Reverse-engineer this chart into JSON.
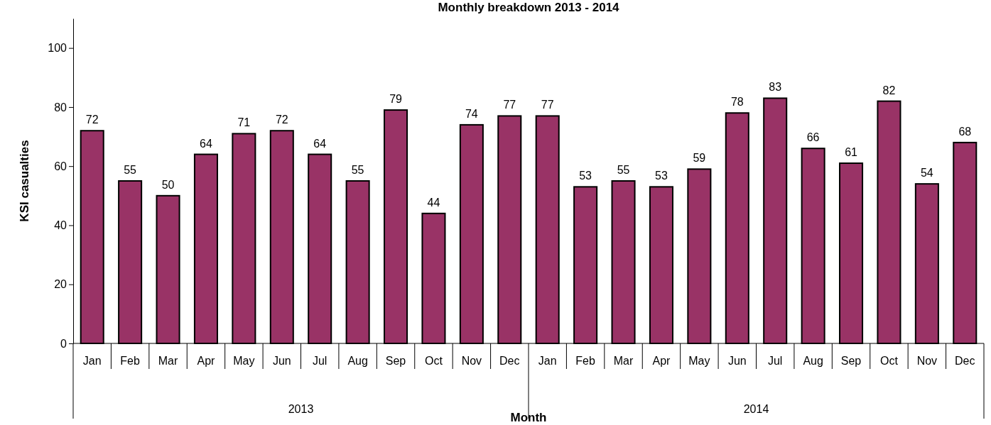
{
  "chart_data": {
    "type": "bar",
    "title": "Monthly breakdown 2013 - 2014",
    "xlabel": "Month",
    "ylabel": "KSI casualties",
    "categories": [
      "Jan",
      "Feb",
      "Mar",
      "Apr",
      "May",
      "Jun",
      "Jul",
      "Aug",
      "Sep",
      "Oct",
      "Nov",
      "Dec",
      "Jan",
      "Feb",
      "Mar",
      "Apr",
      "May",
      "Jun",
      "Jul",
      "Aug",
      "Sep",
      "Oct",
      "Nov",
      "Dec"
    ],
    "values": [
      72,
      55,
      50,
      64,
      71,
      72,
      64,
      55,
      79,
      44,
      74,
      77,
      77,
      53,
      55,
      53,
      59,
      78,
      83,
      66,
      61,
      82,
      54,
      68
    ],
    "color": "#993366",
    "ylim": [
      0,
      110
    ],
    "yticks": [
      0,
      20,
      40,
      60,
      80,
      100
    ],
    "data_labels": true,
    "annotations": [
      "2013",
      "2014"
    ]
  }
}
